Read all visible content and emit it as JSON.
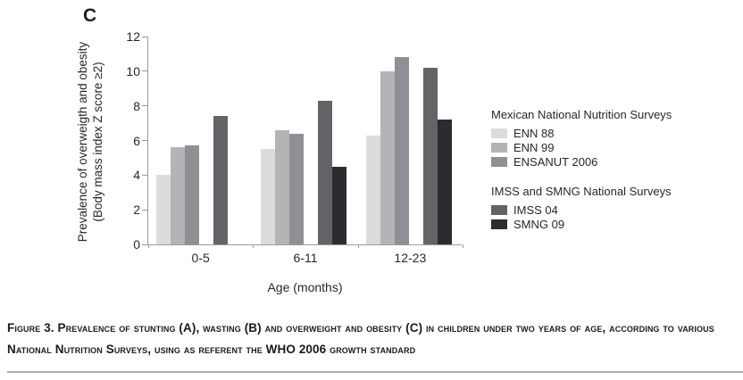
{
  "panel_label": "C",
  "chart_data": {
    "type": "bar",
    "title": "",
    "xlabel": "Age (months)",
    "ylabel_line1": "Prevalence of overweigth and obesity",
    "ylabel_line2": "(Body mass index Z score ≥2)",
    "ylim": [
      0,
      12
    ],
    "yticks": [
      0,
      2,
      4,
      6,
      8,
      10,
      12
    ],
    "grid": false,
    "categories": [
      "0-5",
      "6-11",
      "12-23"
    ],
    "series": [
      {
        "name": "ENN 88",
        "color": "#dcdcde",
        "values": [
          4.0,
          5.5,
          6.3
        ]
      },
      {
        "name": "ENN 99",
        "color": "#b3b4b6",
        "values": [
          5.6,
          6.6,
          10.0
        ]
      },
      {
        "name": "ENSANUT 2006",
        "color": "#8e9093",
        "values": [
          5.7,
          6.4,
          10.8
        ]
      },
      {
        "name": "IMSS 04",
        "color": "#636467",
        "values": [
          7.4,
          8.3,
          10.2
        ]
      },
      {
        "name": "SMNG 09",
        "color": "#2d2b2f",
        "values": [
          null,
          4.5,
          7.2
        ]
      }
    ],
    "gap_before_series_index": 3,
    "legend": {
      "position": "right",
      "groups": [
        {
          "heading": "Mexican National Nutrition Surveys",
          "entries": [
            "ENN 88",
            "ENN 99",
            "ENSANUT 2006"
          ]
        },
        {
          "heading": "IMSS and SMNG National Surveys",
          "entries": [
            "IMSS 04",
            "SMNG 09"
          ]
        }
      ]
    }
  },
  "caption": {
    "text": "Figure 3. Prevalence of stunting (A), wasting (B) and overweight and obesity (C) in children under two years of age, according to various National Nutrition Surveys, using as referent the WHO 2006 growth standard"
  }
}
